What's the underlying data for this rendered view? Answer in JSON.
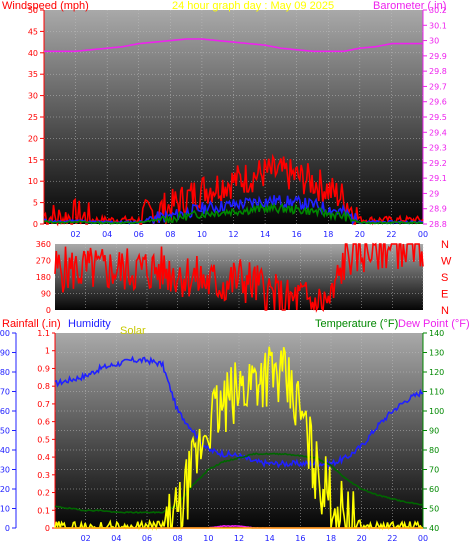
{
  "chart_data": [
    {
      "type": "line",
      "title": "24 hour graph day : May 09 2025",
      "ylabel": "Windspeed (mph)",
      "y2label": "Barometer (.in)",
      "x_ticks": [
        "02",
        "04",
        "06",
        "08",
        "10",
        "12",
        "14",
        "16",
        "18",
        "20",
        "22",
        "00"
      ],
      "ylim": [
        0,
        50
      ],
      "yticks": [
        "0",
        "5",
        "10",
        "15",
        "20",
        "25",
        "30",
        "35",
        "40",
        "45",
        "50"
      ],
      "y2lim": [
        28.8,
        30.2
      ],
      "y2ticks": [
        "28.8",
        "28.9",
        "29",
        "29.1",
        "29.2",
        "29.3",
        "29.4",
        "29.5",
        "29.6",
        "29.7",
        "29.8",
        "29.9",
        "30",
        "30.1",
        "30.2"
      ],
      "grid": true,
      "series": [
        {
          "name": "Windspeed (mph)",
          "color": "#ff0000",
          "axis": "y",
          "x": [
            0,
            1,
            2,
            3,
            4,
            5,
            6,
            7,
            8,
            9,
            10,
            11,
            12,
            13,
            14,
            15,
            16,
            17,
            18,
            19,
            20,
            21,
            22,
            23,
            24
          ],
          "y": [
            2,
            1,
            2,
            1,
            1,
            1,
            1,
            3,
            4,
            6,
            8,
            9,
            10,
            11,
            12,
            12,
            11,
            10,
            8,
            6,
            1,
            1,
            1,
            1,
            1
          ]
        },
        {
          "name": "Barometer (.in)",
          "color": "#ee22ee",
          "axis": "y2",
          "x": [
            0,
            1,
            2,
            3,
            4,
            5,
            6,
            7,
            8,
            9,
            10,
            11,
            12,
            13,
            14,
            15,
            16,
            17,
            18,
            19,
            20,
            21,
            22,
            23,
            24
          ],
          "y": [
            29.93,
            29.93,
            29.93,
            29.94,
            29.95,
            29.96,
            29.98,
            29.99,
            30.0,
            30.01,
            30.01,
            30.0,
            29.99,
            29.98,
            29.97,
            29.95,
            29.94,
            29.93,
            29.93,
            29.93,
            29.95,
            29.96,
            29.98,
            29.98,
            29.98
          ]
        }
      ]
    },
    {
      "type": "line",
      "title": "",
      "ylim": [
        0,
        360
      ],
      "yticks": [
        "0",
        "90",
        "180",
        "270",
        "360"
      ],
      "y2ticks": [
        "N",
        "E",
        "S",
        "W",
        "N"
      ],
      "grid": true,
      "series": [
        {
          "name": "",
          "color": "#ff0000",
          "x": [
            0,
            1,
            2,
            3,
            4,
            5,
            6,
            7,
            8,
            9,
            10,
            11,
            12,
            13,
            14,
            15,
            16,
            17,
            18,
            19,
            20,
            21,
            22,
            23,
            24
          ],
          "y": [
            220,
            220,
            220,
            220,
            220,
            220,
            220,
            220,
            200,
            180,
            150,
            140,
            170,
            140,
            90,
            40,
            60,
            30,
            50,
            300,
            320,
            340,
            350,
            360,
            360
          ]
        }
      ]
    },
    {
      "type": "line",
      "title": "",
      "ylabel": "Rainfall (.in)",
      "y2label_left_humidity": "Humidity",
      "solar_label": "Solar",
      "temperature_label": "Temperature (°F)",
      "dewpoint_label": "Dew Point (°F)",
      "x_ticks": [
        "02",
        "04",
        "06",
        "08",
        "10",
        "12",
        "14",
        "16",
        "18",
        "20",
        "22",
        "00"
      ],
      "yticks_humidity": [
        "0",
        "10",
        "20",
        "30",
        "40",
        "50",
        "60",
        "70",
        "80",
        "90",
        "100"
      ],
      "yticks_rain": [
        "0",
        "0.1",
        "0.2",
        "0.3",
        "0.4",
        "0.5",
        "0.6",
        "0.7",
        "0.8",
        "0.9",
        "1",
        "1.1"
      ],
      "yticks_temp": [
        "40",
        "50",
        "60",
        "70",
        "80",
        "90",
        "100",
        "110",
        "120",
        "130",
        "140"
      ],
      "grid": true,
      "series": [
        {
          "name": "Humidity",
          "color": "#2020ff",
          "units": "%",
          "x": [
            0,
            1,
            2,
            3,
            4,
            5,
            6,
            7,
            8,
            9,
            10,
            11,
            12,
            13,
            14,
            15,
            16,
            17,
            18,
            19,
            20,
            21,
            22,
            23,
            24
          ],
          "y": [
            74,
            76,
            78,
            82,
            84,
            86,
            86,
            84,
            60,
            50,
            40,
            38,
            37,
            34,
            33,
            33,
            33,
            33,
            33,
            36,
            42,
            52,
            60,
            66,
            70
          ]
        },
        {
          "name": "Temperature (°F)",
          "color": "#006600",
          "units": "°F",
          "x": [
            0,
            1,
            2,
            3,
            4,
            5,
            6,
            7,
            8,
            9,
            10,
            11,
            12,
            13,
            14,
            15,
            16,
            17,
            18,
            19,
            20,
            21,
            22,
            23,
            24
          ],
          "y": [
            51,
            50,
            49,
            49,
            48,
            48,
            48,
            48,
            52,
            62,
            70,
            74,
            76,
            78,
            78,
            78,
            77,
            76,
            72,
            65,
            60,
            57,
            55,
            53,
            52
          ]
        },
        {
          "name": "Dew Point (°F)",
          "color": "#ee22ee",
          "units": "°F",
          "x": [
            0,
            1,
            2,
            3,
            4,
            5,
            6,
            7,
            8,
            9,
            10,
            11,
            12,
            13,
            14,
            15,
            16,
            17,
            18,
            19,
            20,
            21,
            22,
            23,
            24
          ],
          "y": [
            40,
            39,
            39,
            38,
            38,
            38,
            38,
            38,
            38,
            39,
            40,
            41,
            41,
            40,
            40,
            40,
            39,
            39,
            39,
            39,
            39,
            39,
            39,
            39,
            39
          ]
        },
        {
          "name": "Solar",
          "color": "#ffff00",
          "units": "scaled",
          "x": [
            0,
            1,
            2,
            3,
            4,
            5,
            6,
            7,
            8,
            9,
            10,
            11,
            12,
            13,
            14,
            15,
            16,
            17,
            18,
            19,
            20,
            21,
            22,
            23,
            24
          ],
          "y": [
            0,
            0,
            0,
            0,
            0,
            0,
            0,
            1,
            5,
            30,
            55,
            62,
            70,
            78,
            80,
            75,
            60,
            30,
            15,
            5,
            0,
            0,
            0,
            0,
            0
          ]
        },
        {
          "name": "Rainfall (.in)",
          "color": "#ffaa00",
          "units": "in",
          "x": [
            0,
            24
          ],
          "y": [
            0,
            0
          ]
        }
      ]
    }
  ],
  "panel_labels": {
    "windspeed": "Windspeed (mph)",
    "title": "24 hour graph day : May 09 2025",
    "barometer": "Barometer (.in)",
    "rainfall": "Rainfall (.in)",
    "humidity": "Humidity",
    "solar": "Solar",
    "temperature": "Temperature (°F)",
    "dewpoint": "Dew Point (°F)"
  },
  "colors": {
    "wind": "#ff0000",
    "baro": "#ee22ee",
    "humidity": "#2020ff",
    "temp": "#006600",
    "solar": "#ffff00",
    "title": "#ffff00",
    "axis_red": "#ff0000",
    "axis_blue": "#2020ff",
    "axis_green": "#008800"
  }
}
